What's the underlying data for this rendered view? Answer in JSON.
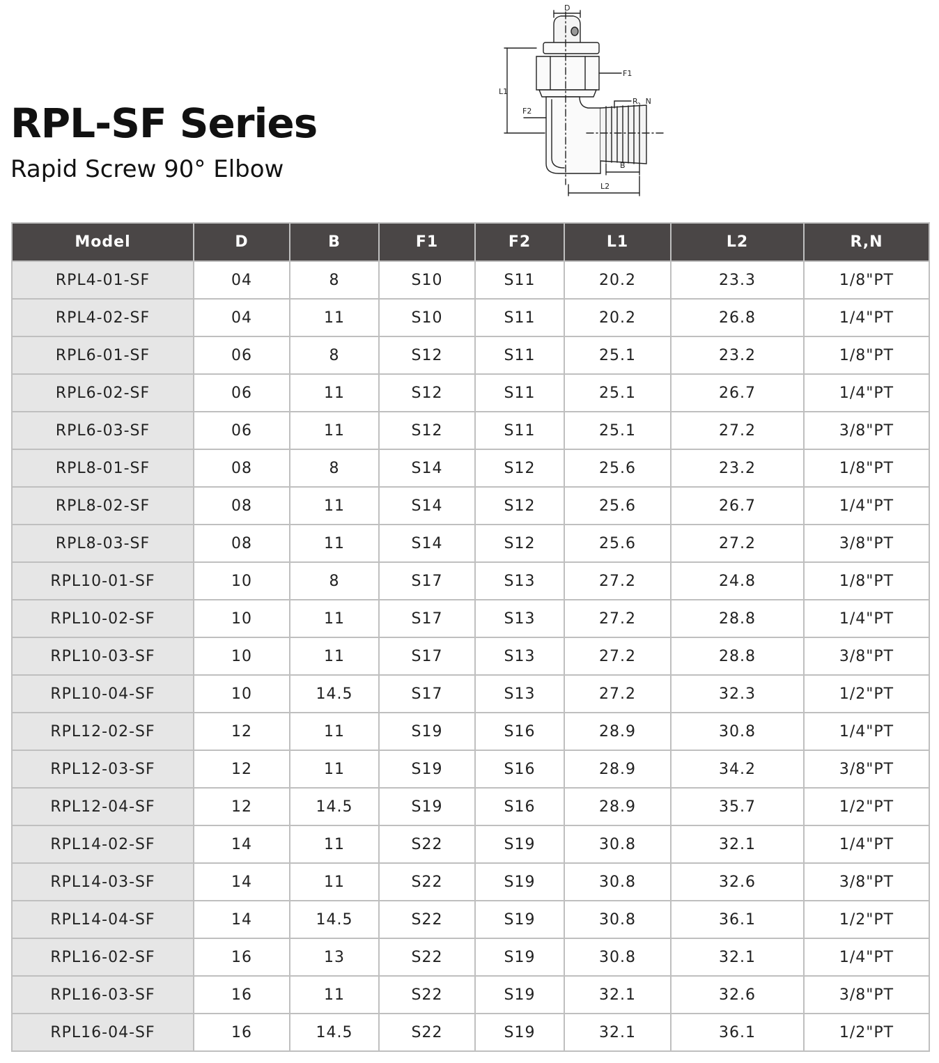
{
  "header": {
    "title": "RPL-SF Series",
    "subtitle": "Rapid Screw 90° Elbow"
  },
  "diagram": {
    "labels": {
      "D": "D",
      "F1": "F1",
      "F2": "F2",
      "L1": "L1",
      "L2": "L2",
      "B": "B",
      "RN": "R、N"
    }
  },
  "table": {
    "columns": [
      "Model",
      "D",
      "B",
      "F1",
      "F2",
      "L1",
      "L2",
      "R,N"
    ],
    "rows": [
      [
        "RPL4-01-SF",
        "04",
        "8",
        "S10",
        "S11",
        "20.2",
        "23.3",
        "1/8\"PT"
      ],
      [
        "RPL4-02-SF",
        "04",
        "11",
        "S10",
        "S11",
        "20.2",
        "26.8",
        "1/4\"PT"
      ],
      [
        "RPL6-01-SF",
        "06",
        "8",
        "S12",
        "S11",
        "25.1",
        "23.2",
        "1/8\"PT"
      ],
      [
        "RPL6-02-SF",
        "06",
        "11",
        "S12",
        "S11",
        "25.1",
        "26.7",
        "1/4\"PT"
      ],
      [
        "RPL6-03-SF",
        "06",
        "11",
        "S12",
        "S11",
        "25.1",
        "27.2",
        "3/8\"PT"
      ],
      [
        "RPL8-01-SF",
        "08",
        "8",
        "S14",
        "S12",
        "25.6",
        "23.2",
        "1/8\"PT"
      ],
      [
        "RPL8-02-SF",
        "08",
        "11",
        "S14",
        "S12",
        "25.6",
        "26.7",
        "1/4\"PT"
      ],
      [
        "RPL8-03-SF",
        "08",
        "11",
        "S14",
        "S12",
        "25.6",
        "27.2",
        "3/8\"PT"
      ],
      [
        "RPL10-01-SF",
        "10",
        "8",
        "S17",
        "S13",
        "27.2",
        "24.8",
        "1/8\"PT"
      ],
      [
        "RPL10-02-SF",
        "10",
        "11",
        "S17",
        "S13",
        "27.2",
        "28.8",
        "1/4\"PT"
      ],
      [
        "RPL10-03-SF",
        "10",
        "11",
        "S17",
        "S13",
        "27.2",
        "28.8",
        "3/8\"PT"
      ],
      [
        "RPL10-04-SF",
        "10",
        "14.5",
        "S17",
        "S13",
        "27.2",
        "32.3",
        "1/2\"PT"
      ],
      [
        "RPL12-02-SF",
        "12",
        "11",
        "S19",
        "S16",
        "28.9",
        "30.8",
        "1/4\"PT"
      ],
      [
        "RPL12-03-SF",
        "12",
        "11",
        "S19",
        "S16",
        "28.9",
        "34.2",
        "3/8\"PT"
      ],
      [
        "RPL12-04-SF",
        "12",
        "14.5",
        "S19",
        "S16",
        "28.9",
        "35.7",
        "1/2\"PT"
      ],
      [
        "RPL14-02-SF",
        "14",
        "11",
        "S22",
        "S19",
        "30.8",
        "32.1",
        "1/4\"PT"
      ],
      [
        "RPL14-03-SF",
        "14",
        "11",
        "S22",
        "S19",
        "30.8",
        "32.6",
        "3/8\"PT"
      ],
      [
        "RPL14-04-SF",
        "14",
        "14.5",
        "S22",
        "S19",
        "30.8",
        "36.1",
        "1/2\"PT"
      ],
      [
        "RPL16-02-SF",
        "16",
        "13",
        "S22",
        "S19",
        "30.8",
        "32.1",
        "1/4\"PT"
      ],
      [
        "RPL16-03-SF",
        "16",
        "11",
        "S22",
        "S19",
        "32.1",
        "32.6",
        "3/8\"PT"
      ],
      [
        "RPL16-04-SF",
        "16",
        "14.5",
        "S22",
        "S19",
        "32.1",
        "36.1",
        "1/2\"PT"
      ]
    ]
  },
  "colors": {
    "header_bg": "#4a4646",
    "header_text": "#ffffff",
    "model_col_bg": "#e6e6e6",
    "grid": "#bfbfbf"
  }
}
